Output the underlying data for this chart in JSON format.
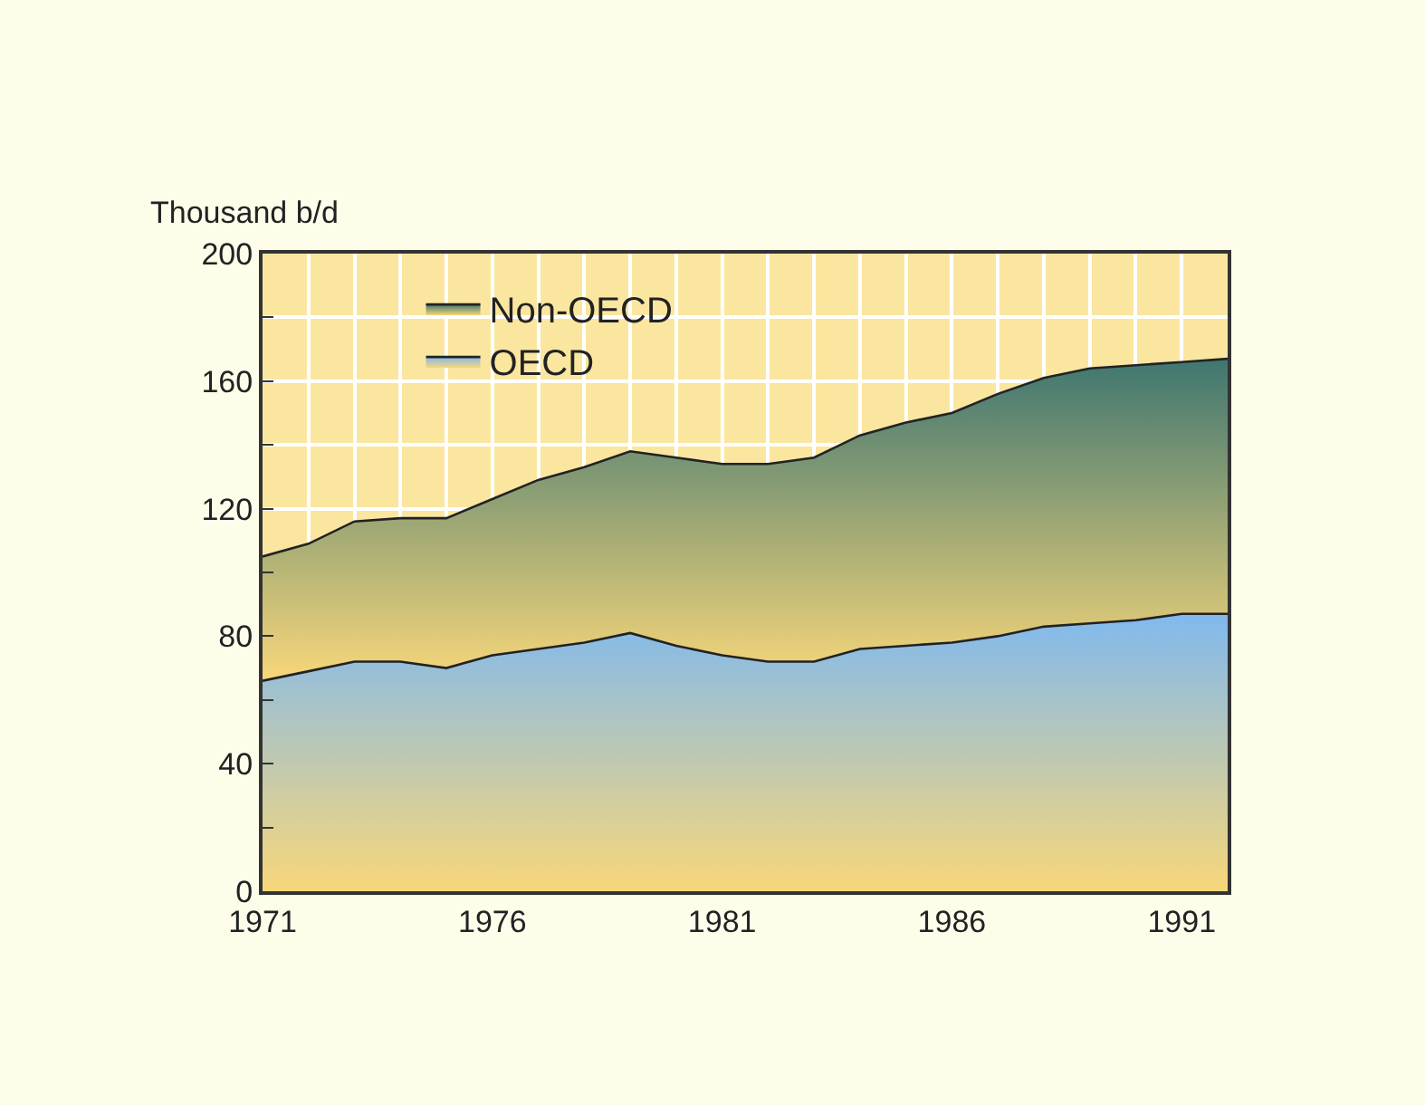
{
  "chart_data": {
    "type": "area",
    "ylabel": "Thousand b/d",
    "stacked": true,
    "x": [
      1971,
      1972,
      1973,
      1974,
      1975,
      1976,
      1977,
      1978,
      1979,
      1980,
      1981,
      1982,
      1983,
      1984,
      1985,
      1986,
      1987,
      1988,
      1989,
      1990,
      1991,
      1992
    ],
    "series": [
      {
        "name": "OECD",
        "color": "#80b9ee",
        "values": [
          66,
          69,
          72,
          72,
          70,
          74,
          76,
          78,
          81,
          77,
          74,
          72,
          72,
          76,
          77,
          78,
          80,
          83,
          84,
          85,
          87,
          87
        ]
      },
      {
        "name": "Non-OECD",
        "color": "#3f7670",
        "values": [
          39,
          40,
          44,
          45,
          47,
          49,
          53,
          55,
          57,
          59,
          60,
          62,
          64,
          67,
          70,
          72,
          76,
          78,
          80,
          80,
          79,
          80
        ]
      }
    ],
    "xlim": [
      1971,
      1992
    ],
    "xticks": [
      1971,
      {
        "value": 1972,
        "label": null
      },
      {
        "value": 1973,
        "label": null
      },
      {
        "value": 1974,
        "label": null
      },
      {
        "value": 1975,
        "label": null
      },
      1976,
      {
        "value": 1977,
        "label": null
      },
      {
        "value": 1978,
        "label": null
      },
      {
        "value": 1979,
        "label": null
      },
      {
        "value": 1980,
        "label": null
      },
      1981,
      {
        "value": 1982,
        "label": null
      },
      {
        "value": 1983,
        "label": null
      },
      {
        "value": 1984,
        "label": null
      },
      {
        "value": 1985,
        "label": null
      },
      1986,
      {
        "value": 1987,
        "label": null
      },
      {
        "value": 1988,
        "label": null
      },
      {
        "value": 1989,
        "label": null
      },
      {
        "value": 1990,
        "label": null
      },
      1991,
      {
        "value": 1992,
        "label": null
      }
    ],
    "ylim": [
      0,
      200
    ],
    "yticks": [
      0,
      {
        "value": 20,
        "label": null
      },
      40,
      {
        "value": 60,
        "label": null
      },
      80,
      {
        "value": 100,
        "label": null
      },
      120,
      {
        "value": 140,
        "label": null
      },
      160,
      {
        "value": 180,
        "label": null
      },
      200
    ],
    "grid": true,
    "legend": "top left"
  }
}
